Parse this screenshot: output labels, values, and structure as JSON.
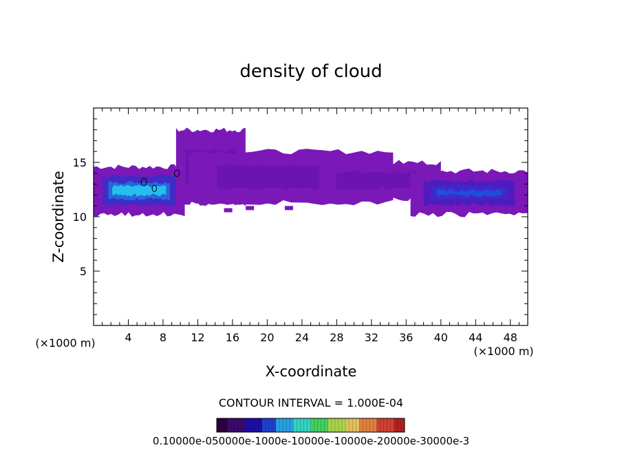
{
  "chart_data": {
    "type": "heatmap",
    "title": "density of cloud",
    "xlabel": "X-coordinate",
    "ylabel": "Z-coordinate",
    "x_unit": "(×1000 m)",
    "z_unit": "(×1000 m)",
    "xlim": [
      0,
      50
    ],
    "ylim": [
      0,
      20
    ],
    "x_ticks": [
      4,
      8,
      12,
      16,
      20,
      24,
      28,
      32,
      36,
      40,
      44,
      48
    ],
    "y_ticks": [
      5,
      10,
      15
    ],
    "grid": false,
    "contour_interval_text": "CONTOUR INTERVAL = 1.000E-04",
    "colorbar": {
      "label_text": "0.10000e-050000e-1000e-10000e-10000e-20000e-30000e-3",
      "colors": [
        "#2a0040",
        "#3a0a6a",
        "#1b0ea6",
        "#1f3fd0",
        "#27a0e0",
        "#33d4c0",
        "#44d060",
        "#a8d24a",
        "#e0c060",
        "#e08040",
        "#d04030",
        "#b02020"
      ]
    },
    "cloud_regions": [
      {
        "x_range": [
          0,
          10.5
        ],
        "z_range": [
          10.2,
          14.6
        ],
        "max_level": "high"
      },
      {
        "x_range": [
          9.5,
          17.5
        ],
        "z_range": [
          11.2,
          18.0
        ],
        "max_level": "low"
      },
      {
        "x_range": [
          11,
          34.5
        ],
        "z_range": [
          11.3,
          16.0
        ],
        "max_level": "low"
      },
      {
        "x_range": [
          26,
          40
        ],
        "z_range": [
          11.7,
          15.0
        ],
        "max_level": "low"
      },
      {
        "x_range": [
          36.5,
          50
        ],
        "z_range": [
          10.2,
          14.2
        ],
        "max_level": "medium"
      }
    ],
    "colors": {
      "cloud_low": "#7a18b8",
      "cloud_mid": "#3c2cc8",
      "cloud_high": "#27c8ee"
    }
  }
}
